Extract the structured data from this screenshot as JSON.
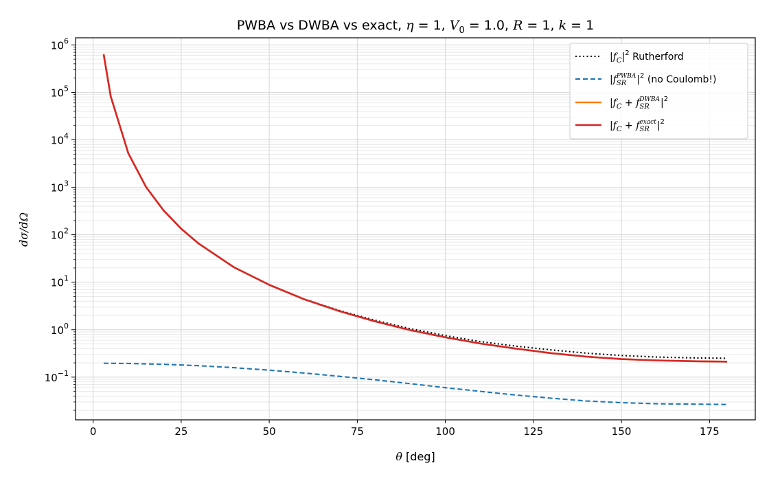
{
  "chart_data": {
    "type": "line",
    "title_parts": {
      "lead": "PWBA vs DWBA vs exact, ",
      "eta_sym": "η",
      "eta_val": " = 1, ",
      "v_sym": "V",
      "v_sub": "0",
      "v_val": " = 1.0, ",
      "r_sym": "R",
      "r_val": " = 1, ",
      "k_sym": "k",
      "k_val": " = 1"
    },
    "xlabel_parts": {
      "sym": "θ",
      "unit": "  [deg]"
    },
    "ylabel": "dσ/dΩ",
    "xlim": [
      -5,
      188
    ],
    "ylim_log10": [
      -1.9,
      6.15
    ],
    "yscale": "log",
    "grid": true,
    "legend_position": "top-right",
    "x_ticks": [
      0,
      25,
      50,
      75,
      100,
      125,
      150,
      175
    ],
    "y_ticks": [
      {
        "base": "10",
        "exp": "−1",
        "log": -1
      },
      {
        "base": "10",
        "exp": "0",
        "log": 0
      },
      {
        "base": "10",
        "exp": "1",
        "log": 1
      },
      {
        "base": "10",
        "exp": "2",
        "log": 2
      },
      {
        "base": "10",
        "exp": "3",
        "log": 3
      },
      {
        "base": "10",
        "exp": "4",
        "log": 4
      },
      {
        "base": "10",
        "exp": "5",
        "log": 5
      },
      {
        "base": "10",
        "exp": "6",
        "log": 6
      }
    ],
    "series": [
      {
        "key": "rutherford",
        "color": "#000000",
        "style": "dotted",
        "legend": {
          "pre": "|",
          "f": "f",
          "sub": "C",
          "sup": "2",
          "mid": "|",
          "post": " Rutherford"
        },
        "x": [
          3,
          5,
          10,
          15,
          20,
          25,
          30,
          40,
          50,
          60,
          70,
          80,
          90,
          100,
          110,
          120,
          130,
          140,
          150,
          160,
          170,
          180
        ],
        "y": [
          630000,
          82000,
          5200,
          1020,
          326,
          134,
          65,
          20.6,
          8.8,
          4.4,
          2.52,
          1.58,
          1.05,
          0.75,
          0.56,
          0.45,
          0.375,
          0.32,
          0.285,
          0.265,
          0.255,
          0.25
        ]
      },
      {
        "key": "pwba",
        "color": "#1f77b4",
        "style": "dashed",
        "legend": {
          "pre": "|",
          "f": "f",
          "sub": "SR",
          "sup": "PWBA",
          "mid": "|",
          "sup2": "2",
          "post": " (no Coulomb!)"
        },
        "x": [
          3,
          10,
          20,
          30,
          40,
          50,
          60,
          70,
          80,
          90,
          100,
          110,
          120,
          130,
          140,
          150,
          160,
          170,
          180
        ],
        "y": [
          0.196,
          0.194,
          0.186,
          0.174,
          0.158,
          0.14,
          0.122,
          0.104,
          0.088,
          0.073,
          0.06,
          0.05,
          0.042,
          0.036,
          0.0315,
          0.029,
          0.0275,
          0.027,
          0.0265
        ]
      },
      {
        "key": "dwba",
        "color": "#ff7f0e",
        "style": "solid",
        "legend": {
          "pre": "|",
          "f": "f",
          "sub_pre": "C",
          "plus": " + ",
          "f2": "f",
          "sub": "SR",
          "sup": "DWBA",
          "mid": "|",
          "sup2": "2"
        },
        "x": [
          3,
          5,
          10,
          15,
          20,
          25,
          30,
          40,
          50,
          60,
          70,
          80,
          90,
          100,
          110,
          120,
          130,
          140,
          150,
          160,
          170,
          180
        ],
        "y": [
          630000,
          82000,
          5200,
          1020,
          326,
          134,
          65,
          20.6,
          8.8,
          4.35,
          2.45,
          1.5,
          0.98,
          0.69,
          0.51,
          0.4,
          0.32,
          0.27,
          0.24,
          0.225,
          0.216,
          0.212
        ]
      },
      {
        "key": "exact",
        "color": "#d62728",
        "style": "solid",
        "legend": {
          "pre": "|",
          "f": "f",
          "sub_pre": "C",
          "plus": " + ",
          "f2": "f",
          "sub": "SR",
          "sup": "exact",
          "mid": "|",
          "sup2": "2"
        },
        "x": [
          3,
          5,
          10,
          15,
          20,
          25,
          30,
          40,
          50,
          60,
          70,
          80,
          90,
          100,
          110,
          120,
          130,
          140,
          150,
          160,
          170,
          180
        ],
        "y": [
          630000,
          82000,
          5200,
          1020,
          326,
          134,
          65,
          20.6,
          8.8,
          4.35,
          2.45,
          1.5,
          0.98,
          0.69,
          0.51,
          0.4,
          0.32,
          0.27,
          0.24,
          0.225,
          0.216,
          0.212
        ]
      }
    ]
  }
}
